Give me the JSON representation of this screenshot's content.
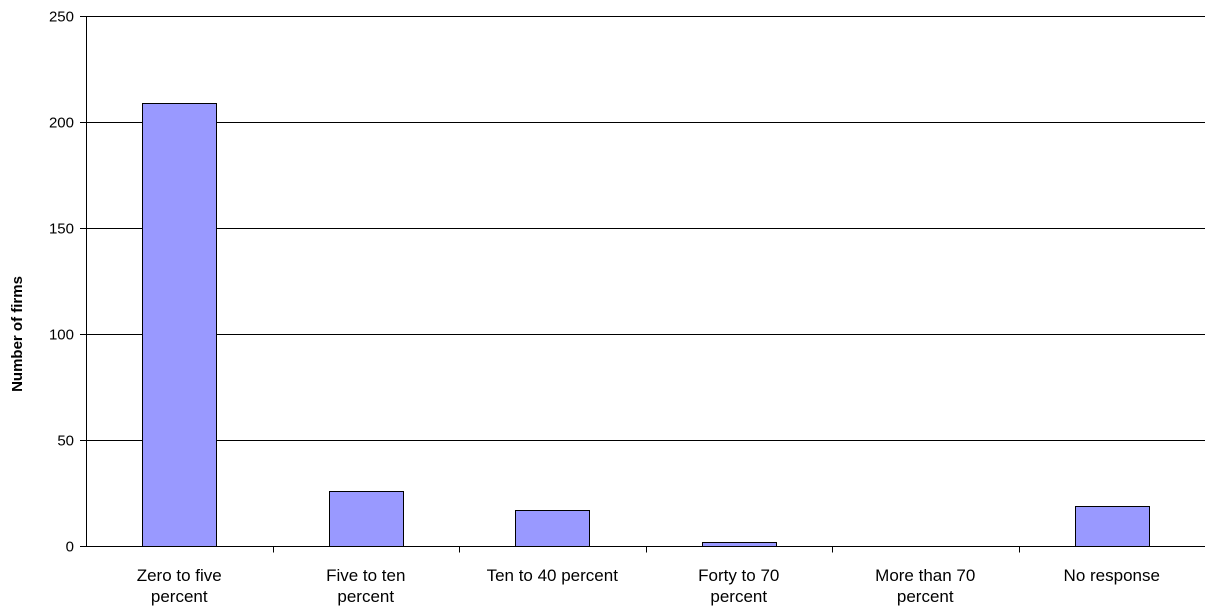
{
  "chart_data": {
    "type": "bar",
    "title": "",
    "xlabel": "",
    "ylabel": "Number of firms",
    "ylim": [
      0,
      250
    ],
    "yticks": [
      0,
      50,
      100,
      150,
      200,
      250
    ],
    "grid": true,
    "legend": "none",
    "bar_color": "#9999ff",
    "categories": [
      [
        "Zero to five",
        "percent"
      ],
      [
        "Five to ten",
        "percent"
      ],
      [
        "Ten to 40 percent"
      ],
      [
        "Forty to 70",
        "percent"
      ],
      [
        "More than 70",
        "percent"
      ],
      [
        "No response"
      ]
    ],
    "values": [
      209,
      26,
      17,
      2,
      0,
      19
    ]
  }
}
